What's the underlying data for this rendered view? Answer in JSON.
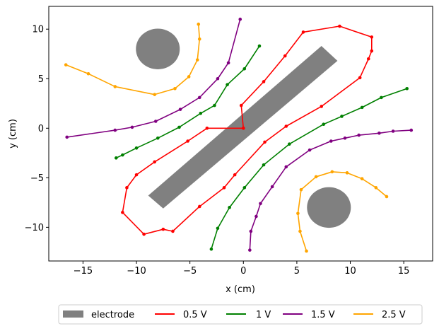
{
  "chart_data": {
    "type": "line",
    "xlabel": "x (cm)",
    "ylabel": "y (cm)",
    "xlim": [
      -18.2,
      17.7
    ],
    "ylim": [
      -13.4,
      12.3
    ],
    "xticks": [
      -15,
      -10,
      -5,
      0,
      5,
      10,
      15
    ],
    "yticks": [
      -10,
      -5,
      0,
      5,
      10
    ],
    "xtick_labels": [
      "−15",
      "−10",
      "−5",
      "0",
      "5",
      "10",
      "15"
    ],
    "ytick_labels": [
      "−10",
      "−5",
      "0",
      "5",
      "10"
    ],
    "grid": false,
    "legend": {
      "placement": "bottom-center, below axes",
      "entries": [
        "electrode",
        "0.5 V",
        "1 V",
        "1.5 V",
        "2.5 V"
      ]
    },
    "electrodes": [
      {
        "shape": "rotated-rectangle",
        "color": "#808080",
        "corners": [
          [
            7.3,
            8.3
          ],
          [
            8.8,
            6.8
          ],
          [
            -7.5,
            -8.1
          ],
          [
            -8.9,
            -6.8
          ]
        ]
      },
      {
        "shape": "circle",
        "color": "#808080",
        "center": [
          -8.0,
          8.0
        ],
        "radius": 2.05
      },
      {
        "shape": "circle",
        "color": "#808080",
        "center": [
          8.0,
          -8.0
        ],
        "radius": 2.05
      }
    ],
    "series": [
      {
        "name": "0.5 V",
        "color": "#ff0000",
        "segments": [
          [
            [
              0.0,
              0.0
            ],
            [
              -3.4,
              0.0
            ],
            [
              -5.2,
              -1.3
            ],
            [
              -8.3,
              -3.4
            ],
            [
              -10.0,
              -4.7
            ],
            [
              -10.9,
              -6.0
            ],
            [
              -11.3,
              -8.5
            ],
            [
              -9.3,
              -10.7
            ],
            [
              -7.5,
              -10.2
            ],
            [
              -6.6,
              -10.4
            ],
            [
              -4.1,
              -7.9
            ],
            [
              -1.8,
              -6.0
            ],
            [
              -0.8,
              -4.7
            ],
            [
              2.0,
              -1.4
            ],
            [
              4.0,
              0.2
            ],
            [
              7.3,
              2.2
            ],
            [
              10.9,
              5.1
            ],
            [
              11.7,
              7.0
            ],
            [
              12.0,
              7.8
            ],
            [
              12.0,
              9.2
            ],
            [
              9.0,
              10.3
            ],
            [
              5.6,
              9.7
            ],
            [
              3.9,
              7.3
            ],
            [
              1.9,
              4.7
            ],
            [
              -0.2,
              2.3
            ],
            [
              0.0,
              0.0
            ]
          ]
        ]
      },
      {
        "name": "1 V",
        "color": "#008000",
        "segments": [
          [
            [
              -11.9,
              -3.0
            ],
            [
              -11.3,
              -2.7
            ],
            [
              -10.0,
              -2.0
            ],
            [
              -8.0,
              -1.0
            ],
            [
              -6.0,
              0.1
            ],
            [
              -4.0,
              1.5
            ],
            [
              -2.7,
              2.3
            ],
            [
              -1.5,
              4.4
            ],
            [
              0.1,
              6.0
            ],
            [
              1.5,
              8.3
            ]
          ],
          [
            [
              -3.0,
              -12.2
            ],
            [
              -2.4,
              -10.1
            ],
            [
              -1.3,
              -8.0
            ],
            [
              0.1,
              -6.0
            ],
            [
              1.9,
              -3.7
            ],
            [
              4.3,
              -1.6
            ],
            [
              7.5,
              0.4
            ],
            [
              9.2,
              1.2
            ],
            [
              11.1,
              2.1
            ],
            [
              12.9,
              3.1
            ],
            [
              15.3,
              4.0
            ]
          ]
        ]
      },
      {
        "name": "1.5 V",
        "color": "#800080",
        "segments": [
          [
            [
              -16.5,
              -0.9
            ],
            [
              -12.0,
              -0.2
            ],
            [
              -10.4,
              0.1
            ],
            [
              -8.2,
              0.7
            ],
            [
              -5.9,
              1.9
            ],
            [
              -4.1,
              3.1
            ],
            [
              -2.4,
              5.0
            ],
            [
              -1.4,
              6.6
            ],
            [
              -0.3,
              11.0
            ]
          ],
          [
            [
              0.6,
              -12.3
            ],
            [
              0.7,
              -10.4
            ],
            [
              1.2,
              -8.9
            ],
            [
              1.6,
              -7.6
            ],
            [
              2.7,
              -5.9
            ],
            [
              4.0,
              -3.9
            ],
            [
              6.2,
              -2.2
            ],
            [
              8.2,
              -1.3
            ],
            [
              9.5,
              -1.0
            ],
            [
              10.8,
              -0.7
            ],
            [
              12.7,
              -0.5
            ],
            [
              14.0,
              -0.3
            ],
            [
              15.7,
              -0.2
            ]
          ]
        ]
      },
      {
        "name": "2.5 V",
        "color": "#ffa500",
        "segments": [
          [
            [
              -16.6,
              6.4
            ],
            [
              -14.5,
              5.5
            ],
            [
              -12.0,
              4.2
            ],
            [
              -8.3,
              3.4
            ],
            [
              -6.4,
              4.0
            ],
            [
              -5.1,
              5.2
            ],
            [
              -4.3,
              6.9
            ],
            [
              -4.1,
              9.0
            ],
            [
              -4.2,
              10.5
            ]
          ],
          [
            [
              5.9,
              -12.4
            ],
            [
              5.3,
              -10.4
            ],
            [
              5.1,
              -8.6
            ],
            [
              5.4,
              -6.2
            ],
            [
              6.8,
              -4.9
            ],
            [
              8.3,
              -4.4
            ],
            [
              9.7,
              -4.5
            ],
            [
              11.1,
              -5.1
            ],
            [
              12.4,
              -6.0
            ],
            [
              13.4,
              -6.9
            ]
          ]
        ]
      }
    ]
  }
}
